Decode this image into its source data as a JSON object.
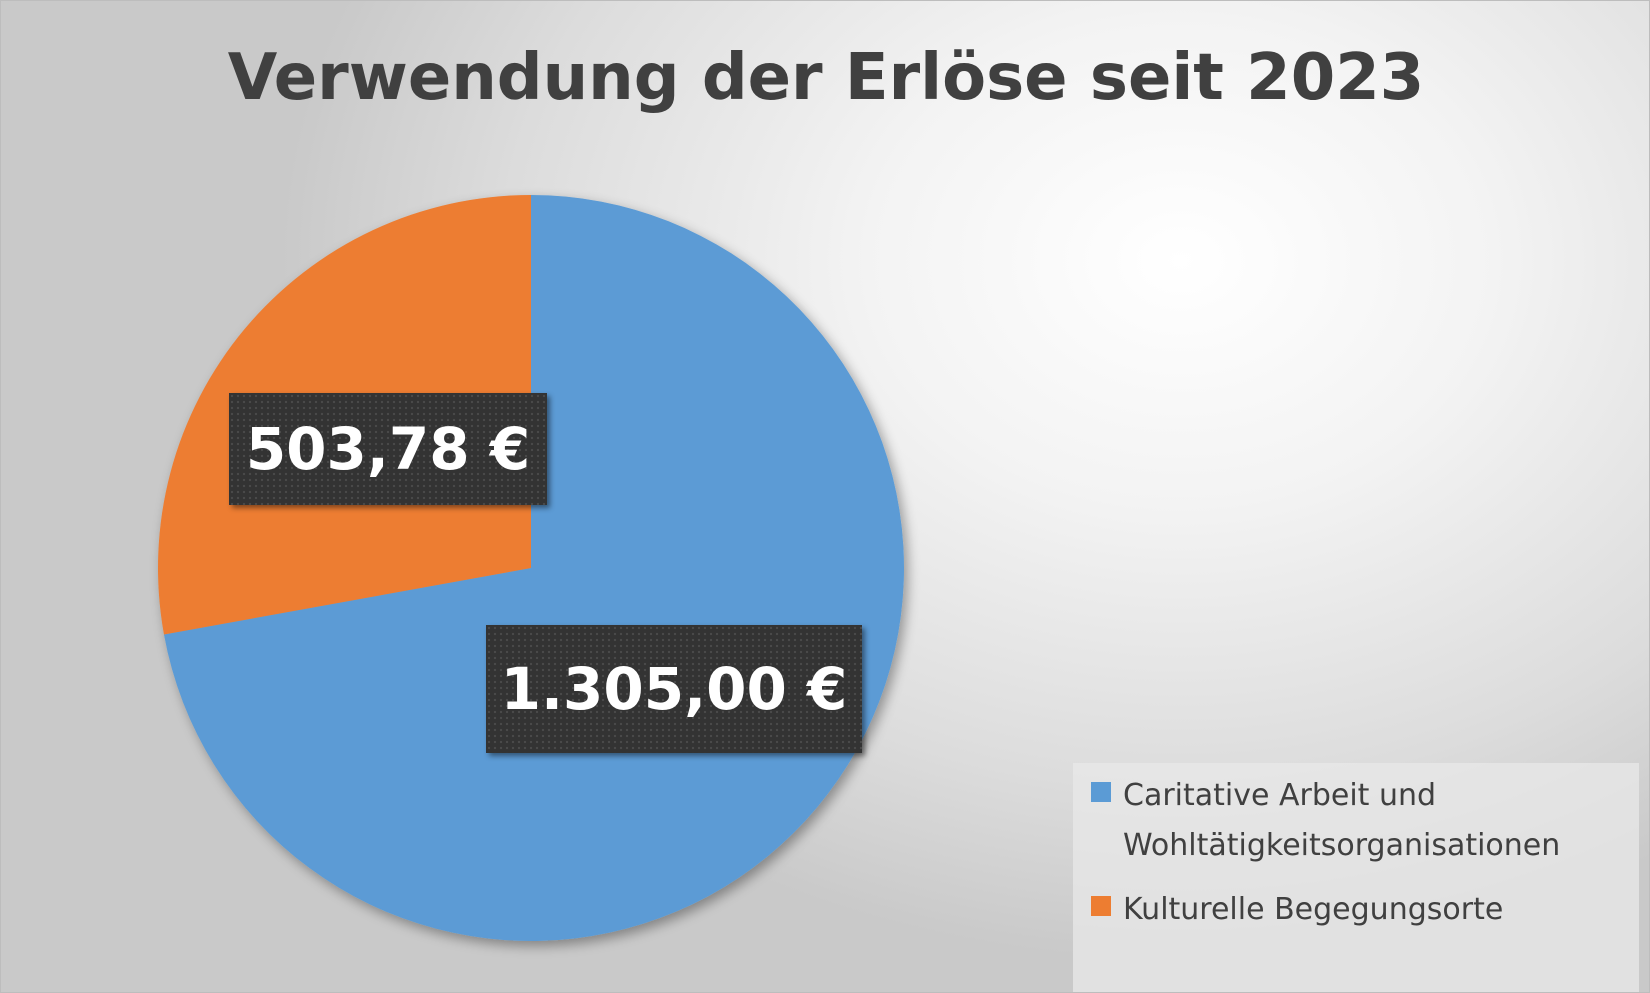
{
  "chart_data": {
    "type": "pie",
    "title": "Verwendung der Erlöse seit 2023",
    "slices": [
      {
        "name": "Caritative Arbeit und Wohltätigkeitsorganisationen",
        "value": 1305.0,
        "label": "1.305,00 €",
        "color": "#5B9BD5"
      },
      {
        "name": "Kulturelle Begegungsorte",
        "value": 503.78,
        "label": "503,78 €",
        "color": "#ED7D31"
      }
    ],
    "start_angle_deg": 0,
    "direction": "clockwise",
    "legend_position": "bottom-right"
  }
}
